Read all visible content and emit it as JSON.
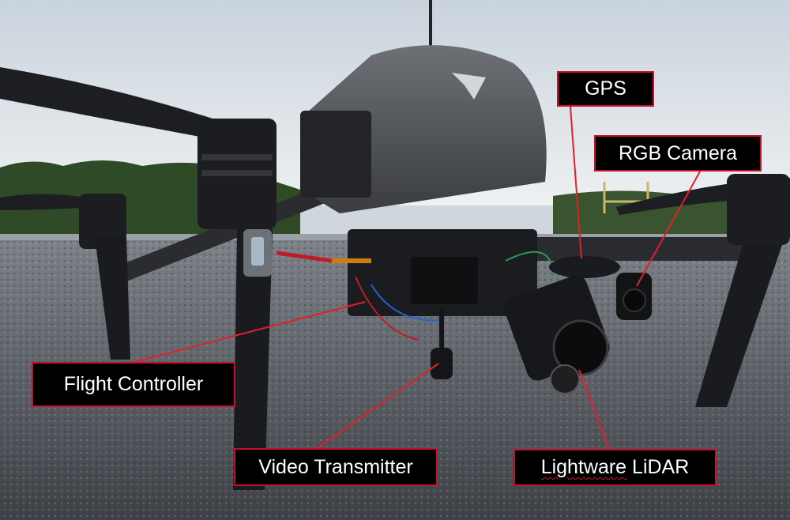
{
  "labels": {
    "gps": "GPS",
    "rgb_camera": "RGB Camera",
    "flight_controller": "Flight Controller",
    "video_transmitter": "Video Transmitter",
    "lidar_word1": "Lightware",
    "lidar_word2": "LiDAR"
  },
  "colors": {
    "leader_line": "#e0202a",
    "label_bg": "#000000",
    "label_border": "#c8102e",
    "label_text": "#ffffff"
  }
}
